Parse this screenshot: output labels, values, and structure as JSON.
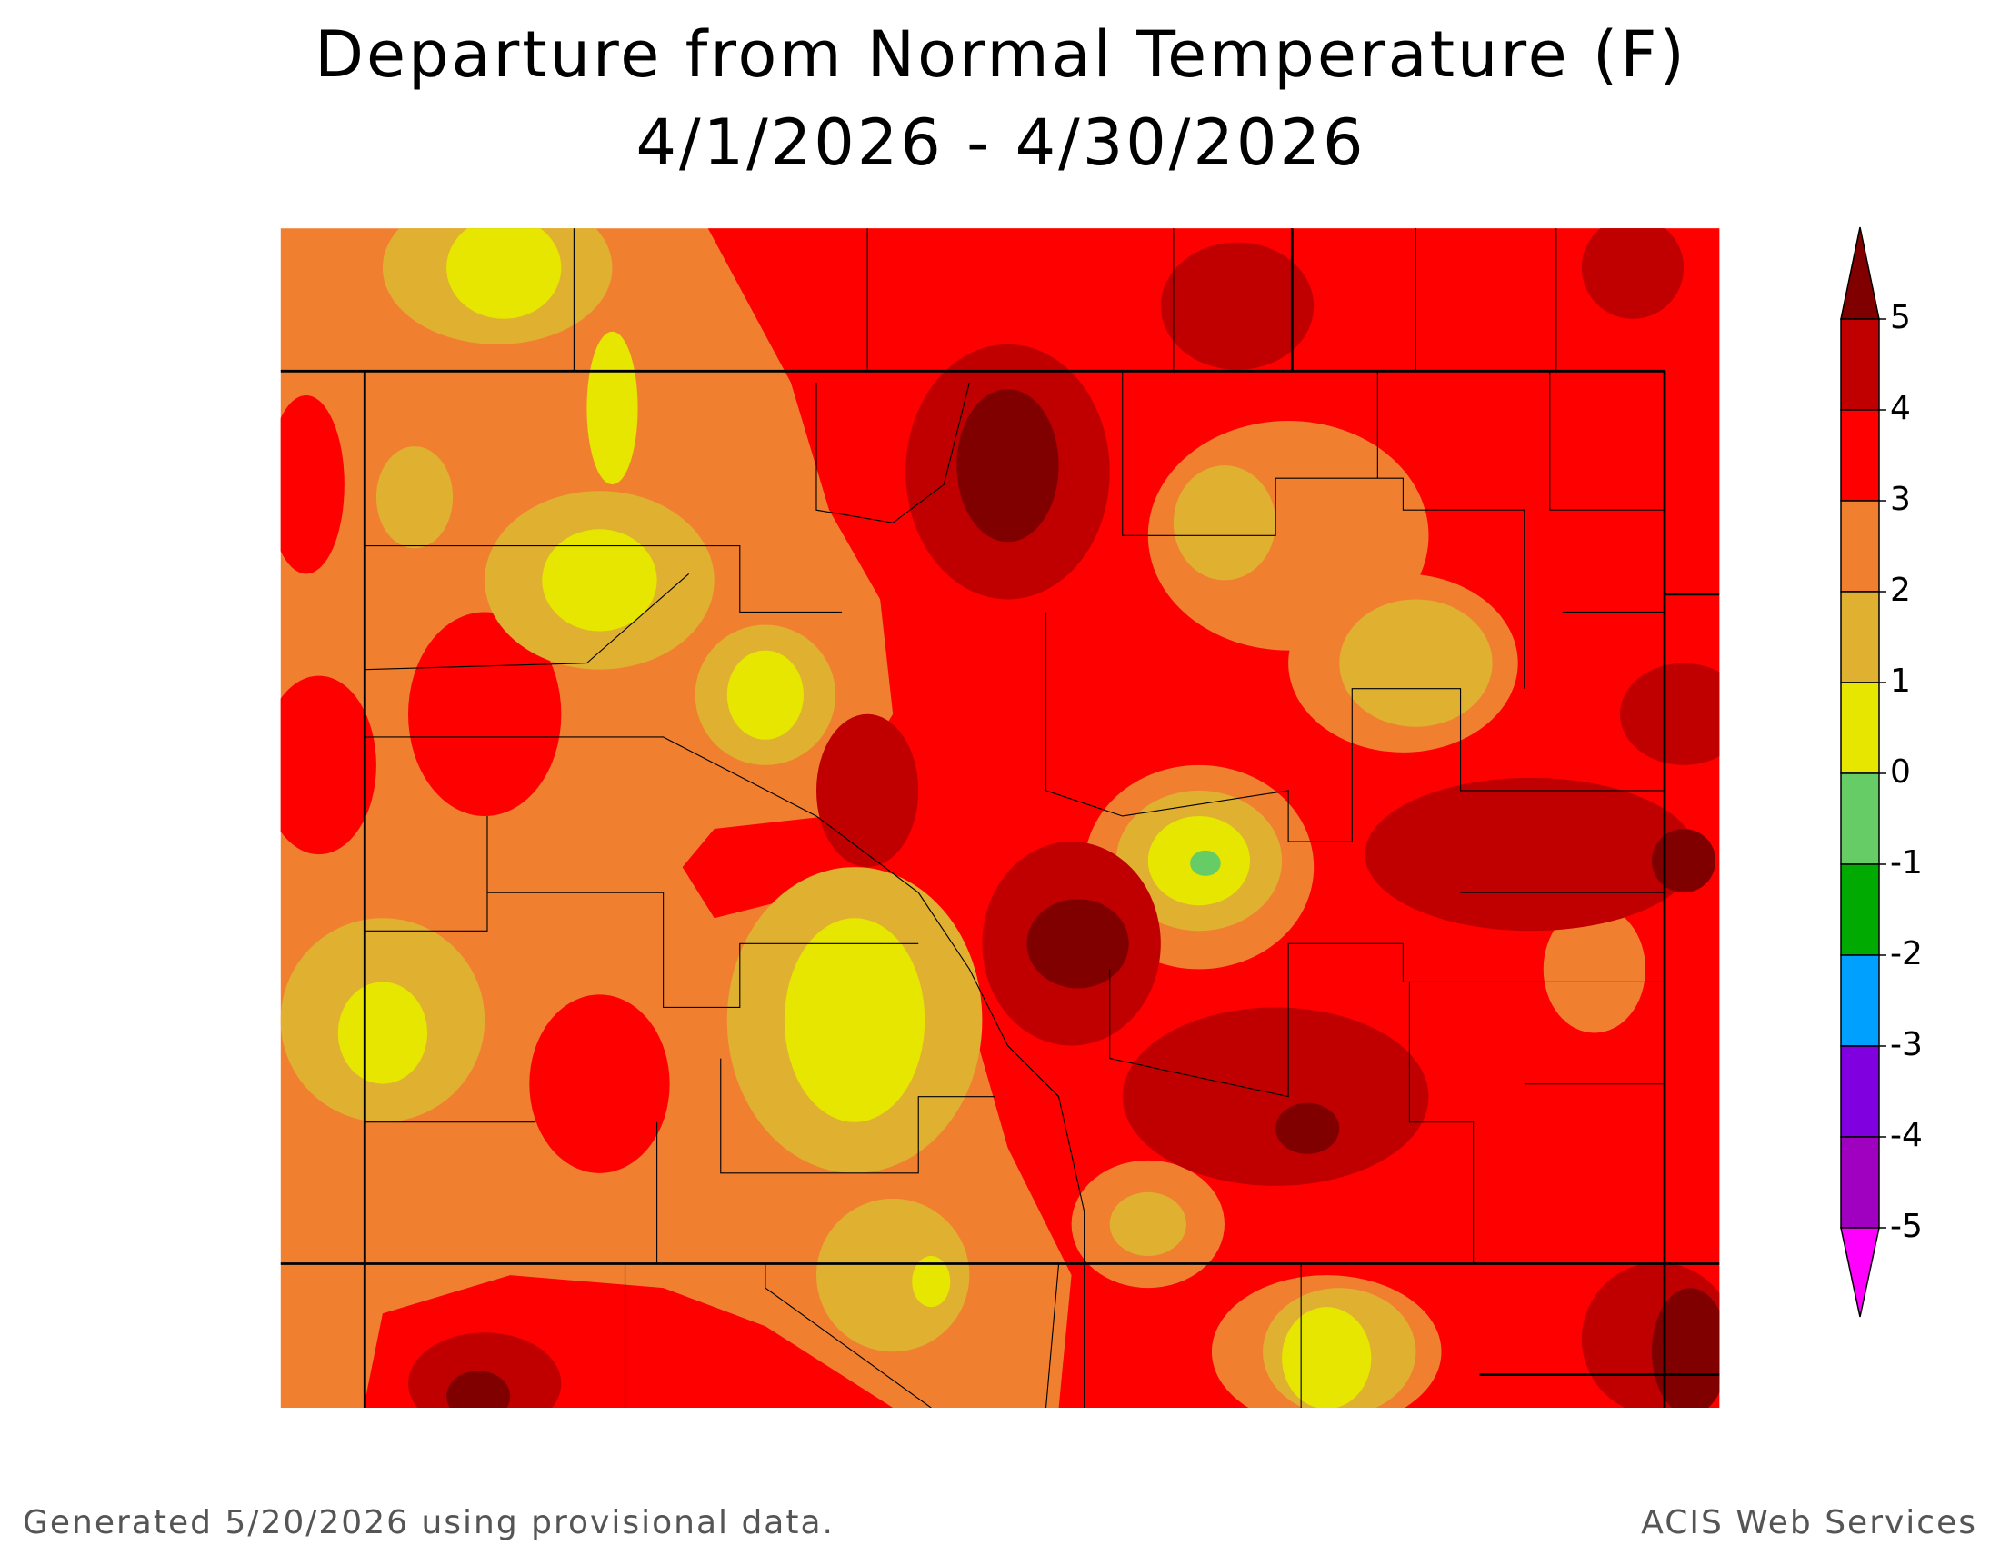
{
  "header": {
    "title": "Departure from Normal Temperature (F)",
    "subtitle": "4/1/2026 - 4/30/2026"
  },
  "legend": {
    "levels": [
      5,
      4,
      3,
      2,
      1,
      0,
      -1,
      -2,
      -3,
      -4,
      -5
    ],
    "colors": [
      "#800000",
      "#c00000",
      "#ff0000",
      "#f08030",
      "#e0b030",
      "#e6e600",
      "#66cc66",
      "#00aa00",
      "#00a0ff",
      "#8000e0",
      "#a000c0",
      "#ff00ff"
    ]
  },
  "footer": {
    "left": "Generated 5/20/2026 using provisional data.",
    "right": "ACIS Web Services"
  }
}
